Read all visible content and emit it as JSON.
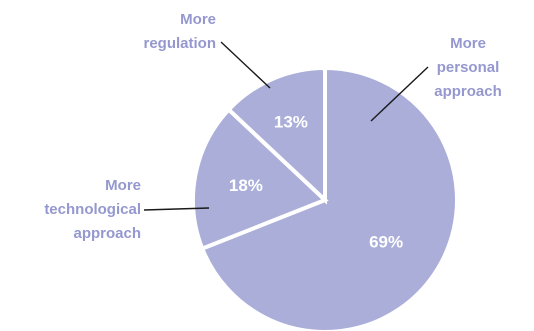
{
  "chart_data": {
    "type": "pie",
    "start_angle_deg": 0,
    "direction": "clockwise",
    "slices": [
      {
        "label": [
          "More",
          "personal",
          "approach"
        ],
        "value": 69,
        "value_label": "69%",
        "color": "#aaaed9"
      },
      {
        "label": [
          "More",
          "technological",
          "approach"
        ],
        "value": 18,
        "value_label": "18%",
        "color": "#aaaed9"
      },
      {
        "label": [
          "More",
          "regulation"
        ],
        "value": 13,
        "value_label": "13%",
        "color": "#aaaed9"
      }
    ],
    "label_color": "#9598cf",
    "value_label_color": "#ffffff",
    "legend": "none"
  }
}
